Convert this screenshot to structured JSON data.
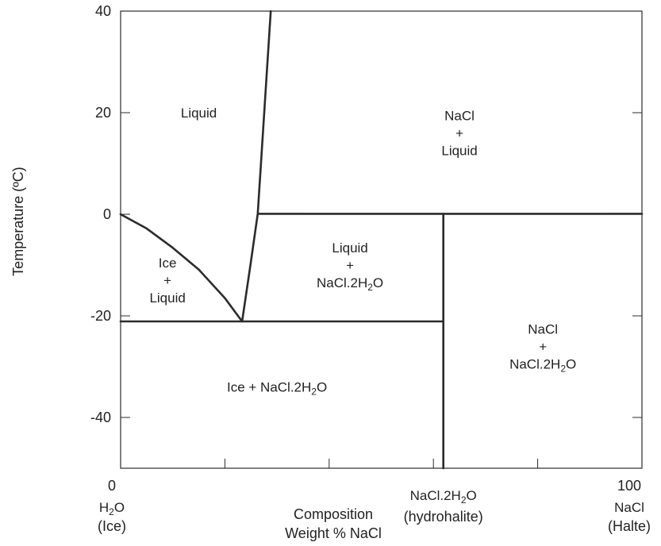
{
  "chart_data": {
    "type": "line",
    "title": "",
    "ylabel": "Temperature (ºC)",
    "xlabel": {
      "line1": "Composition",
      "line2": "Weight % NaCl"
    },
    "xlim": [
      0,
      100
    ],
    "ylim": [
      -50,
      40
    ],
    "grid": false,
    "x_tick_marks": [
      0,
      20,
      40,
      60,
      80,
      100
    ],
    "y_ticks": [
      {
        "value": 40,
        "label": "40"
      },
      {
        "value": 20,
        "label": "20"
      },
      {
        "value": 0,
        "label": "0"
      },
      {
        "value": -20,
        "label": "-20"
      },
      {
        "value": -40,
        "label": "-40"
      }
    ],
    "x_axis_annotations": [
      {
        "x": 0,
        "value_label": "0",
        "line1": "H",
        "sub1": "2",
        "line1_tail": "O",
        "line2": "(Ice)"
      },
      {
        "x": 61.9,
        "line1": "NaCl.2H",
        "sub1": "2",
        "line1_tail": "O",
        "line2": "(hydrohalite)"
      },
      {
        "x": 100,
        "value_label": "100",
        "line1": "NaCl",
        "line2": "(Halte)"
      }
    ],
    "series": [
      {
        "id": "ice-liquidus",
        "points": [
          [
            0,
            0
          ],
          [
            5,
            -2.8
          ],
          [
            10,
            -6.6
          ],
          [
            15,
            -10.9
          ],
          [
            20,
            -16.5
          ],
          [
            23.3,
            -21.1
          ]
        ]
      },
      {
        "id": "hydrohalite-liquidus",
        "points": [
          [
            23.3,
            -21.1
          ],
          [
            24.9,
            -10
          ],
          [
            26.3,
            0.1
          ],
          [
            28.8,
            40
          ]
        ]
      },
      {
        "id": "eutectic",
        "points": [
          [
            0,
            -21.1
          ],
          [
            61.9,
            -21.1
          ]
        ]
      },
      {
        "id": "peritectic",
        "points": [
          [
            26.3,
            0.1
          ],
          [
            100,
            0.1
          ]
        ]
      },
      {
        "id": "hydrohalite-composition",
        "points": [
          [
            61.9,
            0.1
          ],
          [
            61.9,
            -50
          ]
        ]
      }
    ],
    "annotations": [
      {
        "id": "liquid",
        "lines": [
          {
            "text": "Liquid"
          }
        ],
        "x": 15,
        "y": 20
      },
      {
        "id": "nacl-liquid",
        "lines": [
          {
            "text": "NaCl"
          },
          {
            "text": "+"
          },
          {
            "text": "Liquid"
          }
        ],
        "x": 65,
        "y": 16
      },
      {
        "id": "ice-liquid",
        "lines": [
          {
            "text": "Ice"
          },
          {
            "text": "+"
          },
          {
            "text": "Liquid"
          }
        ],
        "x": 9,
        "y": -13
      },
      {
        "id": "liquid-hydrohalite",
        "lines": [
          {
            "text": "Liquid"
          },
          {
            "text": "+"
          },
          {
            "text": "NaCl.2H",
            "sub": "2",
            "tail": "O"
          }
        ],
        "x": 44,
        "y": -10
      },
      {
        "id": "nacl-hydrohalite",
        "lines": [
          {
            "text": "NaCl"
          },
          {
            "text": "+"
          },
          {
            "text": "NaCl.2H",
            "sub": "2",
            "tail": "O"
          }
        ],
        "x": 81,
        "y": -26
      },
      {
        "id": "ice-hydrohalite",
        "lines": [
          {
            "text": "Ice + NaCl.2H",
            "sub": "2",
            "tail": "O"
          }
        ],
        "x": 30,
        "y": -34
      }
    ],
    "colors": {
      "line": "#2b2b2b",
      "frame": "#2b2b2b",
      "text": "#222222"
    }
  }
}
